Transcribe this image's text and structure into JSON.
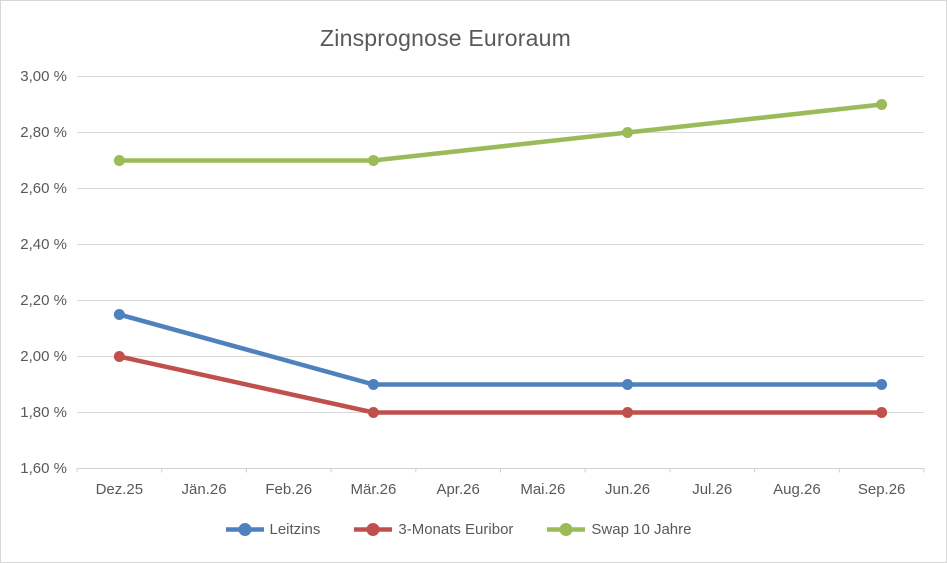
{
  "chart_data": {
    "type": "line",
    "title": "Zinsprognose Euroraum",
    "categories": [
      "Dez.25",
      "Jän.26",
      "Feb.26",
      "Mär.26",
      "Apr.26",
      "Mai.26",
      "Jun.26",
      "Jul.26",
      "Aug.26",
      "Sep.26"
    ],
    "series": [
      {
        "name": "Leitzins",
        "color": "#4F81BD",
        "values": [
          2.15,
          null,
          null,
          1.9,
          null,
          null,
          1.9,
          null,
          null,
          1.9
        ]
      },
      {
        "name": "3-Monats Euribor",
        "color": "#C0504D",
        "values": [
          2.0,
          null,
          null,
          1.8,
          null,
          null,
          1.8,
          null,
          null,
          1.8
        ]
      },
      {
        "name": "Swap 10 Jahre",
        "color": "#9BBB59",
        "values": [
          2.7,
          null,
          null,
          2.7,
          null,
          null,
          2.8,
          null,
          null,
          2.9
        ]
      }
    ],
    "xlabel": "",
    "ylabel": "",
    "ylim": [
      1.6,
      3.0
    ],
    "ytick_step": 0.2,
    "ytick_labels": [
      "3,00 %",
      "2,80 %",
      "2,60 %",
      "2,40 %",
      "2,20 %",
      "2,00 %",
      "1,80 %",
      "1,60 %"
    ],
    "grid": true,
    "legend_position": "bottom",
    "colors": {
      "gridline": "#D9D9D9",
      "axis_line": "#D0D0D0",
      "text": "#595959",
      "background": "#FFFFFF",
      "border": "#D7D7D7"
    }
  }
}
